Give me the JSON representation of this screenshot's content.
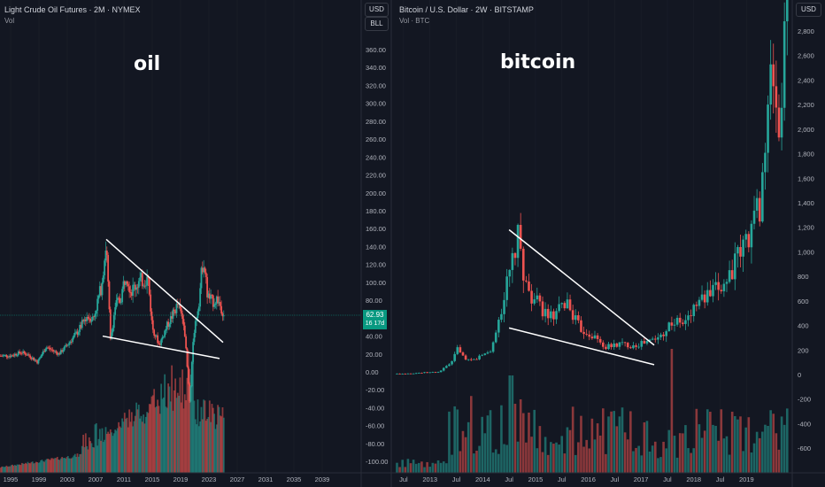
{
  "colors": {
    "background": "#131722",
    "up": "#26a69a",
    "down": "#ef5350",
    "grid": "#1e222d",
    "text": "#b2b5be",
    "line": "#ffffff",
    "price_line": "#089981"
  },
  "left_panel": {
    "title": "Light Crude Oil Futures · 2M · NYMEX",
    "subtitle": "Vol",
    "annotation": "oil",
    "currency_button": "USD",
    "unit_button": "BLL",
    "last_price": "62.93",
    "countdown": "16 17d"
  },
  "right_panel": {
    "title": "Bitcoin / U.S. Dollar · 2W · BITSTAMP",
    "subtitle": "Vol · BTC",
    "annotation": "bitcoin",
    "currency_button": "USD"
  },
  "chart_data": [
    {
      "type": "candlestick",
      "name": "oil",
      "x_ticks": [
        "1995",
        "1999",
        "2003",
        "2007",
        "2011",
        "2015",
        "2019",
        "2023",
        "2027",
        "2031",
        "2035",
        "2039"
      ],
      "y_ticks": [
        "-100.00",
        "-80.00",
        "-60.00",
        "-40.00",
        "-20.00",
        "0.00",
        "20.00",
        "40.00",
        "60.00",
        "80.00",
        "100.00",
        "120.00",
        "140.00",
        "160.00",
        "180.00",
        "200.00",
        "220.00",
        "240.00",
        "260.00",
        "280.00",
        "300.00",
        "320.00",
        "340.00",
        "360.00"
      ],
      "ylim": [
        -110,
        380
      ],
      "xlim": [
        1993.5,
        2041
      ],
      "series": [
        {
          "year": 1993.5,
          "price": 18
        },
        {
          "year": 1995,
          "price": 18
        },
        {
          "year": 1996.5,
          "price": 22
        },
        {
          "year": 1997.5,
          "price": 19
        },
        {
          "year": 1998.8,
          "price": 11
        },
        {
          "year": 2000,
          "price": 28
        },
        {
          "year": 2001.8,
          "price": 20
        },
        {
          "year": 2003,
          "price": 30
        },
        {
          "year": 2004.5,
          "price": 45
        },
        {
          "year": 2005.7,
          "price": 62
        },
        {
          "year": 2006.7,
          "price": 60
        },
        {
          "year": 2007.8,
          "price": 95
        },
        {
          "year": 2008.5,
          "price": 145
        },
        {
          "year": 2009.1,
          "price": 35
        },
        {
          "year": 2009.8,
          "price": 75
        },
        {
          "year": 2010.5,
          "price": 80
        },
        {
          "year": 2011.3,
          "price": 112
        },
        {
          "year": 2012,
          "price": 90
        },
        {
          "year": 2013,
          "price": 100
        },
        {
          "year": 2014.4,
          "price": 105
        },
        {
          "year": 2015,
          "price": 50
        },
        {
          "year": 2016,
          "price": 30
        },
        {
          "year": 2017,
          "price": 50
        },
        {
          "year": 2018.6,
          "price": 75
        },
        {
          "year": 2019.5,
          "price": 55
        },
        {
          "year": 2020.3,
          "price": -37
        },
        {
          "year": 2020.8,
          "price": 40
        },
        {
          "year": 2021.6,
          "price": 80
        },
        {
          "year": 2022.2,
          "price": 130
        },
        {
          "year": 2022.8,
          "price": 85
        },
        {
          "year": 2023.5,
          "price": 78
        },
        {
          "year": 2024.2,
          "price": 82
        },
        {
          "year": 2025.2,
          "price": 63
        }
      ],
      "last_price": 62.93,
      "trendlines": [
        {
          "from": [
            2008.5,
            148
          ],
          "to": [
            2025.0,
            33
          ]
        },
        {
          "from": [
            2008.0,
            40
          ],
          "to": [
            2024.5,
            15
          ]
        }
      ]
    },
    {
      "type": "candlestick",
      "name": "bitcoin",
      "x_ticks": [
        "Jul",
        "2013",
        "Jul",
        "2014",
        "Jul",
        "2015",
        "Jul",
        "2016",
        "Jul",
        "2017",
        "Jul",
        "2018",
        "Jul",
        "2019"
      ],
      "y_ticks": [
        "-600",
        "-400",
        "-200",
        "0",
        "200",
        "400",
        "600",
        "800",
        "1,000",
        "1,200",
        "1,400",
        "1,600",
        "1,800",
        "2,000",
        "2,200",
        "2,400",
        "2,600",
        "2,800"
      ],
      "ylim": [
        -700,
        2980
      ],
      "series": [
        {
          "t": 0.0,
          "price": 5
        },
        {
          "t": 0.5,
          "price": 13
        },
        {
          "t": 1.0,
          "price": 20
        },
        {
          "t": 1.3,
          "price": 100
        },
        {
          "t": 1.45,
          "price": 230
        },
        {
          "t": 1.6,
          "price": 110
        },
        {
          "t": 1.8,
          "price": 120
        },
        {
          "t": 2.2,
          "price": 200
        },
        {
          "t": 2.6,
          "price": 800
        },
        {
          "t": 2.8,
          "price": 1100
        },
        {
          "t": 3.0,
          "price": 700
        },
        {
          "t": 3.3,
          "price": 550
        },
        {
          "t": 3.6,
          "price": 450
        },
        {
          "t": 3.9,
          "price": 600
        },
        {
          "t": 4.2,
          "price": 380
        },
        {
          "t": 4.5,
          "price": 320
        },
        {
          "t": 4.8,
          "price": 220
        },
        {
          "t": 5.1,
          "price": 250
        },
        {
          "t": 5.4,
          "price": 240
        },
        {
          "t": 5.7,
          "price": 260
        },
        {
          "t": 6.0,
          "price": 300
        },
        {
          "t": 6.3,
          "price": 430
        },
        {
          "t": 6.6,
          "price": 420
        },
        {
          "t": 6.9,
          "price": 600
        },
        {
          "t": 7.2,
          "price": 650
        },
        {
          "t": 7.5,
          "price": 750
        },
        {
          "t": 7.8,
          "price": 950
        },
        {
          "t": 8.0,
          "price": 1100
        },
        {
          "t": 8.3,
          "price": 1400
        },
        {
          "t": 8.6,
          "price": 2500
        },
        {
          "t": 8.75,
          "price": 1900
        },
        {
          "t": 8.9,
          "price": 2980
        }
      ],
      "trendlines": [
        {
          "from": [
            2.6,
            1180
          ],
          "to": [
            5.9,
            240
          ]
        },
        {
          "from": [
            2.6,
            380
          ],
          "to": [
            5.9,
            80
          ]
        }
      ]
    }
  ]
}
